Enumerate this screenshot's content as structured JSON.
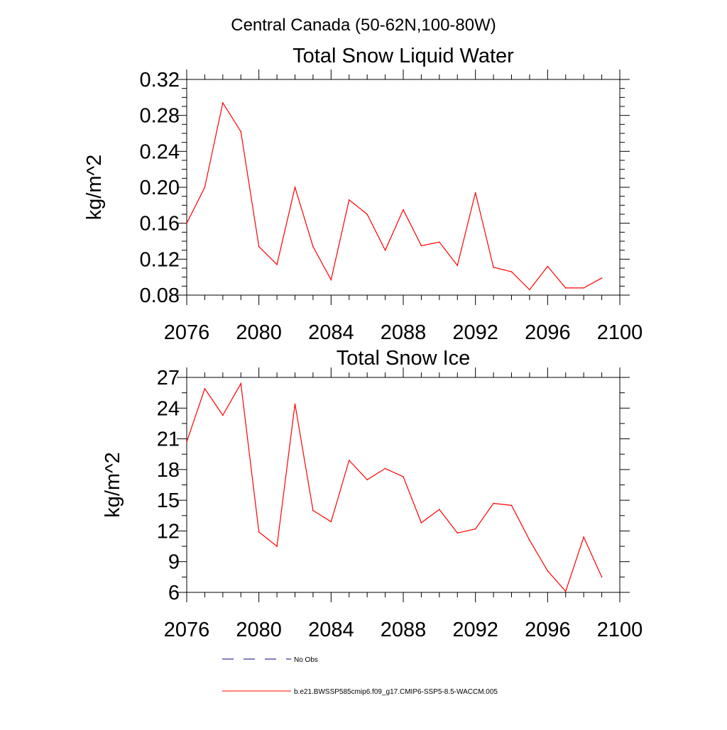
{
  "figure": {
    "title": "Central Canada (50-62N,100-80W)"
  },
  "chart_data": [
    {
      "type": "line",
      "title": "Total Snow Liquid Water",
      "xlabel": "",
      "ylabel": "kg/m^2",
      "xlim": [
        2076,
        2100
      ],
      "ylim": [
        0.08,
        0.32
      ],
      "x_ticks": [
        "2076",
        "2080",
        "2084",
        "2088",
        "2092",
        "2096",
        "2100"
      ],
      "y_ticks": [
        "0.08",
        "0.12",
        "0.16",
        "0.20",
        "0.24",
        "0.28",
        "0.32"
      ],
      "x": [
        2076,
        2077,
        2078,
        2079,
        2080,
        2081,
        2082,
        2083,
        2084,
        2085,
        2086,
        2087,
        2088,
        2089,
        2090,
        2091,
        2092,
        2093,
        2094,
        2095,
        2096,
        2097,
        2098,
        2099
      ],
      "series": [
        {
          "name": "b.e21.BWSSP585cmip6.f09_g17.CMIP6-SSP5-8.5-WACCM.005",
          "color": "#ff0000",
          "values": [
            0.16,
            0.2,
            0.294,
            0.262,
            0.134,
            0.114,
            0.2,
            0.134,
            0.097,
            0.186,
            0.17,
            0.13,
            0.175,
            0.135,
            0.139,
            0.113,
            0.194,
            0.111,
            0.106,
            0.086,
            0.112,
            0.088,
            0.088,
            0.099
          ]
        }
      ]
    },
    {
      "type": "line",
      "title": "Total Snow Ice",
      "xlabel": "",
      "ylabel": "kg/m^2",
      "xlim": [
        2076,
        2100
      ],
      "ylim": [
        6,
        27
      ],
      "x_ticks": [
        "2076",
        "2080",
        "2084",
        "2088",
        "2092",
        "2096",
        "2100"
      ],
      "y_ticks": [
        "6",
        "9",
        "12",
        "15",
        "18",
        "21",
        "24",
        "27"
      ],
      "x": [
        2076,
        2077,
        2078,
        2079,
        2080,
        2081,
        2082,
        2083,
        2084,
        2085,
        2086,
        2087,
        2088,
        2089,
        2090,
        2091,
        2092,
        2093,
        2094,
        2095,
        2096,
        2097,
        2098,
        2099
      ],
      "series": [
        {
          "name": "b.e21.BWSSP585cmip6.f09_g17.CMIP6-SSP5-8.5-WACCM.005",
          "color": "#ff0000",
          "values": [
            20.7,
            25.9,
            23.3,
            26.4,
            11.9,
            10.5,
            24.4,
            14.0,
            12.9,
            18.9,
            17.0,
            18.1,
            17.3,
            12.8,
            14.1,
            11.8,
            12.2,
            14.7,
            14.5,
            11.1,
            8.1,
            6.1,
            11.4,
            7.5
          ]
        }
      ]
    }
  ],
  "legend": {
    "items": [
      {
        "label": "No Obs",
        "color": "#00007f",
        "style": "dashed"
      },
      {
        "label": "b.e21.BWSSP585cmip6.f09_g17.CMIP6-SSP5-8.5-WACCM.005",
        "color": "#ff0000",
        "style": "solid"
      }
    ]
  }
}
